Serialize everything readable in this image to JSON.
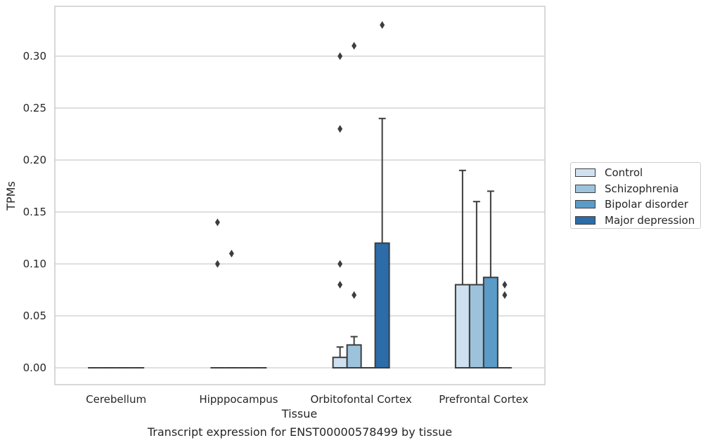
{
  "caption": "Transcript expression for ENST00000578499 by tissue",
  "chart_data": {
    "type": "box",
    "xlabel": "Tissue",
    "ylabel": "TPMs",
    "ylim": [
      -0.016,
      0.348
    ],
    "yticks": [
      0.0,
      0.05,
      0.1,
      0.15,
      0.2,
      0.25,
      0.3
    ],
    "ytick_labels": [
      "0.00",
      "0.05",
      "0.10",
      "0.15",
      "0.20",
      "0.25",
      "0.30"
    ],
    "grid": "horizontal",
    "legend_position": "right",
    "categories": [
      "Cerebellum",
      "Hipppocampus",
      "Orbitofontal Cortex",
      "Prefrontal Cortex"
    ],
    "series": [
      {
        "name": "Control",
        "color": "#cfe1f0",
        "boxes": [
          {
            "q1": 0,
            "median": 0,
            "q3": 0,
            "whisker_low": 0,
            "whisker_high": 0,
            "outliers": []
          },
          {
            "q1": 0,
            "median": 0,
            "q3": 0,
            "whisker_low": 0,
            "whisker_high": 0,
            "outliers": [
              0.1,
              0.14
            ]
          },
          {
            "q1": 0,
            "median": 0,
            "q3": 0.01,
            "whisker_low": 0,
            "whisker_high": 0.02,
            "outliers": [
              0.08,
              0.1,
              0.23,
              0.3
            ]
          },
          {
            "q1": 0,
            "median": 0,
            "q3": 0.08,
            "whisker_low": 0,
            "whisker_high": 0.19,
            "outliers": []
          }
        ]
      },
      {
        "name": "Schizophrenia",
        "color": "#9dc3dc",
        "boxes": [
          {
            "q1": 0,
            "median": 0,
            "q3": 0,
            "whisker_low": 0,
            "whisker_high": 0,
            "outliers": []
          },
          {
            "q1": 0,
            "median": 0,
            "q3": 0,
            "whisker_low": 0,
            "whisker_high": 0,
            "outliers": [
              0.11
            ]
          },
          {
            "q1": 0,
            "median": 0,
            "q3": 0.022,
            "whisker_low": 0,
            "whisker_high": 0.03,
            "outliers": [
              0.07,
              0.31
            ]
          },
          {
            "q1": 0,
            "median": 0,
            "q3": 0.08,
            "whisker_low": 0,
            "whisker_high": 0.16,
            "outliers": []
          }
        ]
      },
      {
        "name": "Bipolar disorder",
        "color": "#5b9bc8",
        "boxes": [
          {
            "q1": 0,
            "median": 0,
            "q3": 0,
            "whisker_low": 0,
            "whisker_high": 0,
            "outliers": []
          },
          {
            "q1": 0,
            "median": 0,
            "q3": 0,
            "whisker_low": 0,
            "whisker_high": 0,
            "outliers": []
          },
          {
            "q1": 0,
            "median": 0,
            "q3": 0,
            "whisker_low": 0,
            "whisker_high": 0,
            "outliers": []
          },
          {
            "q1": 0,
            "median": 0,
            "q3": 0.087,
            "whisker_low": 0,
            "whisker_high": 0.17,
            "outliers": []
          }
        ]
      },
      {
        "name": "Major depression",
        "color": "#2b6ca9",
        "boxes": [
          {
            "q1": 0,
            "median": 0,
            "q3": 0,
            "whisker_low": 0,
            "whisker_high": 0,
            "outliers": []
          },
          {
            "q1": 0,
            "median": 0,
            "q3": 0,
            "whisker_low": 0,
            "whisker_high": 0,
            "outliers": []
          },
          {
            "q1": 0,
            "median": 0,
            "q3": 0.12,
            "whisker_low": 0,
            "whisker_high": 0.24,
            "outliers": [
              0.33
            ]
          },
          {
            "q1": 0,
            "median": 0,
            "q3": 0,
            "whisker_low": 0,
            "whisker_high": 0,
            "outliers": [
              0.07,
              0.08
            ]
          }
        ]
      }
    ]
  }
}
